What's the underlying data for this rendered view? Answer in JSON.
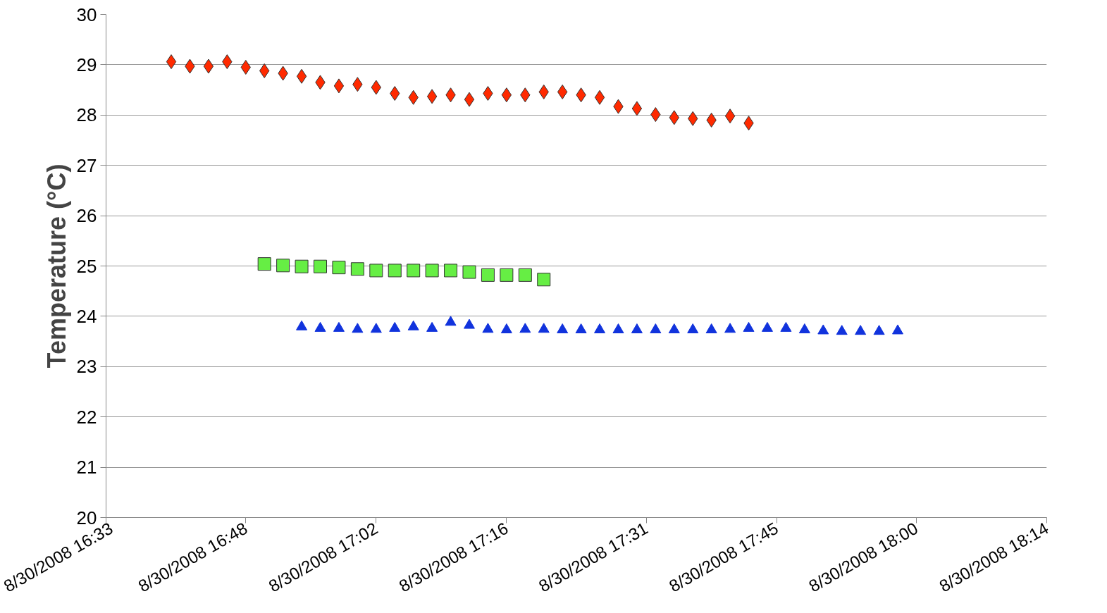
{
  "chart_data": {
    "type": "scatter",
    "ylabel": "Temperature (°C)",
    "xlim": [
      "2008-08-30T16:33",
      "2008-08-30T18:14"
    ],
    "ylim": [
      20,
      30
    ],
    "yticks": [
      20,
      21,
      22,
      23,
      24,
      25,
      26,
      27,
      28,
      29,
      30
    ],
    "xticks": [
      {
        "value": "2008-08-30T16:33",
        "label": "8/30/2008 16:33"
      },
      {
        "value": "2008-08-30T16:48",
        "label": "8/30/2008 16:48"
      },
      {
        "value": "2008-08-30T17:02",
        "label": "8/30/2008 17:02"
      },
      {
        "value": "2008-08-30T17:16",
        "label": "8/30/2008 17:16"
      },
      {
        "value": "2008-08-30T17:31",
        "label": "8/30/2008 17:31"
      },
      {
        "value": "2008-08-30T17:45",
        "label": "8/30/2008 17:45"
      },
      {
        "value": "2008-08-30T18:00",
        "label": "8/30/2008 18:00"
      },
      {
        "value": "2008-08-30T18:14",
        "label": "8/30/2008 18:14"
      }
    ],
    "grid": "y",
    "series": [
      {
        "color": "#ff2a00",
        "marker": "diamond",
        "x": [
          "2008-08-30T16:40",
          "2008-08-30T16:42",
          "2008-08-30T16:44",
          "2008-08-30T16:46",
          "2008-08-30T16:48",
          "2008-08-30T16:50",
          "2008-08-30T16:52",
          "2008-08-30T16:54",
          "2008-08-30T16:56",
          "2008-08-30T16:58",
          "2008-08-30T17:00",
          "2008-08-30T17:02",
          "2008-08-30T17:04",
          "2008-08-30T17:06",
          "2008-08-30T17:08",
          "2008-08-30T17:10",
          "2008-08-30T17:12",
          "2008-08-30T17:14",
          "2008-08-30T17:16",
          "2008-08-30T17:18",
          "2008-08-30T17:20",
          "2008-08-30T17:22",
          "2008-08-30T17:24",
          "2008-08-30T17:26",
          "2008-08-30T17:28",
          "2008-08-30T17:30",
          "2008-08-30T17:32",
          "2008-08-30T17:34",
          "2008-08-30T17:36",
          "2008-08-30T17:38",
          "2008-08-30T17:40",
          "2008-08-30T17:42"
        ],
        "values": [
          29.06,
          28.97,
          28.97,
          29.06,
          28.95,
          28.88,
          28.83,
          28.77,
          28.65,
          28.58,
          28.61,
          28.55,
          28.43,
          28.35,
          28.37,
          28.4,
          28.31,
          28.43,
          28.4,
          28.4,
          28.46,
          28.46,
          28.4,
          28.35,
          28.17,
          28.13,
          28.01,
          27.95,
          27.93,
          27.9,
          27.98,
          27.84
        ]
      },
      {
        "color": "#66ee44",
        "marker": "square",
        "x": [
          "2008-08-30T16:50",
          "2008-08-30T16:52",
          "2008-08-30T16:54",
          "2008-08-30T16:56",
          "2008-08-30T16:58",
          "2008-08-30T17:00",
          "2008-08-30T17:02",
          "2008-08-30T17:04",
          "2008-08-30T17:06",
          "2008-08-30T17:08",
          "2008-08-30T17:10",
          "2008-08-30T17:12",
          "2008-08-30T17:14",
          "2008-08-30T17:16",
          "2008-08-30T17:18",
          "2008-08-30T17:20"
        ],
        "values": [
          25.04,
          25.01,
          24.99,
          24.99,
          24.97,
          24.94,
          24.91,
          24.91,
          24.91,
          24.91,
          24.91,
          24.88,
          24.82,
          24.82,
          24.82,
          24.73
        ]
      },
      {
        "color": "#1133dd",
        "marker": "triangle",
        "x": [
          "2008-08-30T16:54",
          "2008-08-30T16:56",
          "2008-08-30T16:58",
          "2008-08-30T17:00",
          "2008-08-30T17:02",
          "2008-08-30T17:04",
          "2008-08-30T17:06",
          "2008-08-30T17:08",
          "2008-08-30T17:10",
          "2008-08-30T17:12",
          "2008-08-30T17:14",
          "2008-08-30T17:16",
          "2008-08-30T17:18",
          "2008-08-30T17:20",
          "2008-08-30T17:22",
          "2008-08-30T17:24",
          "2008-08-30T17:26",
          "2008-08-30T17:28",
          "2008-08-30T17:30",
          "2008-08-30T17:32",
          "2008-08-30T17:34",
          "2008-08-30T17:36",
          "2008-08-30T17:38",
          "2008-08-30T17:40",
          "2008-08-30T17:42",
          "2008-08-30T17:44",
          "2008-08-30T17:46",
          "2008-08-30T17:48",
          "2008-08-30T17:50",
          "2008-08-30T17:52",
          "2008-08-30T17:54",
          "2008-08-30T17:56",
          "2008-08-30T17:58"
        ],
        "values": [
          23.79,
          23.76,
          23.76,
          23.74,
          23.74,
          23.76,
          23.79,
          23.76,
          23.88,
          23.82,
          23.74,
          23.73,
          23.74,
          23.74,
          23.73,
          23.73,
          23.73,
          23.73,
          23.73,
          23.73,
          23.73,
          23.73,
          23.73,
          23.74,
          23.76,
          23.76,
          23.76,
          23.73,
          23.71,
          23.7,
          23.7,
          23.7,
          23.71
        ]
      }
    ]
  }
}
